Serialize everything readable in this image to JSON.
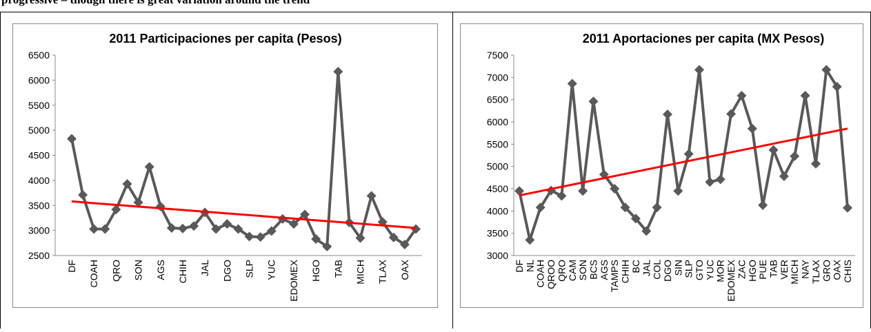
{
  "header": {
    "text": "progressive – though there is great variation around the trend"
  },
  "chart_data": [
    {
      "type": "line",
      "title": "2011 Participaciones per capita (Pesos)",
      "categories": [
        "DF",
        null,
        "COAH",
        null,
        "QRO",
        null,
        "SON",
        null,
        "AGS",
        null,
        "CHIH",
        null,
        "JAL",
        null,
        "DGO",
        null,
        "SLP",
        null,
        "YUC",
        null,
        "EDOMEX",
        null,
        "HGO",
        null,
        "TAB",
        null,
        "MICH",
        null,
        "TLAX",
        null,
        "OAX",
        null
      ],
      "series": [
        {
          "color": "#595959",
          "values": [
            4830,
            3710,
            3030,
            3030,
            3420,
            3930,
            3560,
            4270,
            3480,
            3050,
            3040,
            3090,
            3360,
            3030,
            3130,
            3030,
            2880,
            2870,
            2990,
            3230,
            3130,
            3320,
            2830,
            2680,
            6170,
            3160,
            2850,
            3690,
            3170,
            2860,
            2720,
            3030
          ]
        }
      ],
      "trend": {
        "color": "#ff0000",
        "values": [
          3580,
          3050
        ]
      },
      "ylim": [
        2500,
        6500
      ],
      "yticks": [
        2500,
        3000,
        3500,
        4000,
        4500,
        5000,
        5500,
        6000,
        6500
      ]
    },
    {
      "type": "line",
      "title": "2011 Aportaciones per capita (MX Pesos)",
      "categories": [
        "DF",
        "NL",
        "COAH",
        "QROO",
        "QRO",
        "CAM",
        "SON",
        "BCS",
        "AGS",
        "TAMPS",
        "CHIH",
        "BC",
        "JAL",
        "COL",
        "DGO",
        "SIN",
        "SLP",
        "GTO",
        "YUC",
        "MOR",
        "EDOMEX",
        "ZAC",
        "HGO",
        "PUE",
        "TAB",
        "VER",
        "MICH",
        "NAY",
        "TLAX",
        "GRO",
        "OAX",
        "CHIS"
      ],
      "series": [
        {
          "color": "#595959",
          "values": [
            4450,
            3350,
            4080,
            4460,
            4340,
            6860,
            4450,
            6460,
            4820,
            4500,
            4080,
            3830,
            3550,
            4080,
            6170,
            4450,
            5280,
            7170,
            4650,
            4710,
            6180,
            6590,
            5850,
            4130,
            5370,
            4780,
            5230,
            6590,
            5060,
            7170,
            6790,
            4070
          ]
        }
      ],
      "trend": {
        "color": "#ff0000",
        "values": [
          4350,
          5850
        ]
      },
      "ylim": [
        3000,
        7500
      ],
      "yticks": [
        3000,
        3500,
        4000,
        4500,
        5000,
        5500,
        6000,
        6500,
        7000,
        7500
      ]
    }
  ]
}
